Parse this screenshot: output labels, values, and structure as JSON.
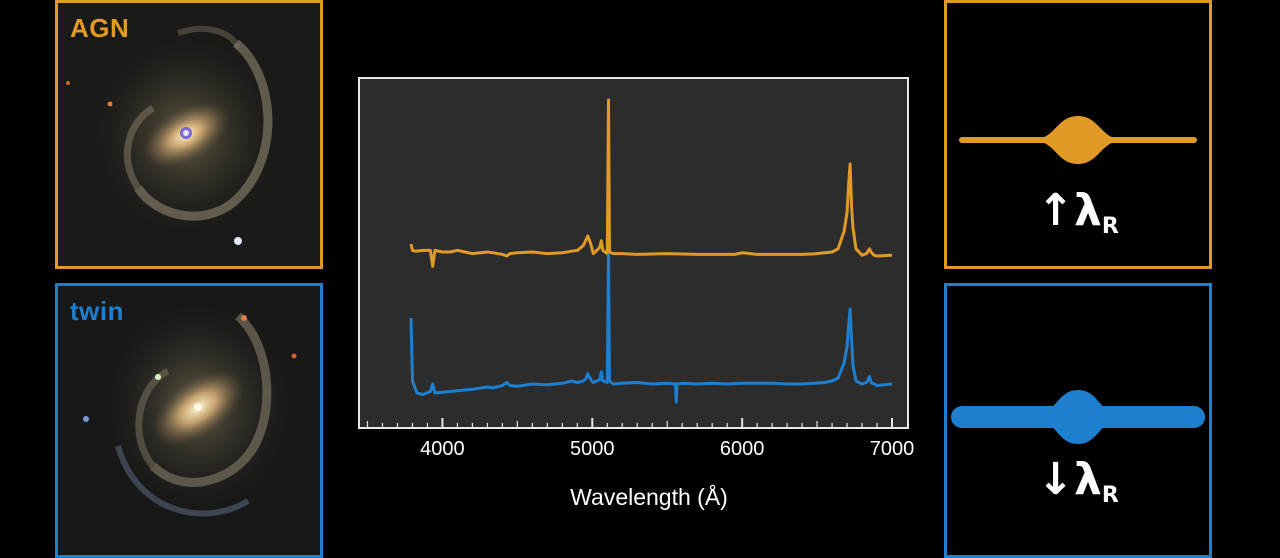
{
  "colors": {
    "agn": "#e29a26",
    "twin": "#1e7fcf",
    "chart_bg": "#2c2c2c"
  },
  "galaxies": [
    {
      "label": "AGN",
      "color": "#e29a26"
    },
    {
      "label": "twin",
      "color": "#1e7fcf"
    }
  ],
  "profiles": [
    {
      "arrow": "↑",
      "symbol": "λ",
      "subscript": "R",
      "color": "#e29a26",
      "profile": "thin"
    },
    {
      "arrow": "↓",
      "symbol": "λ",
      "subscript": "R",
      "color": "#1e7fcf",
      "profile": "thick"
    }
  ],
  "chart_data": {
    "type": "line",
    "title": "",
    "xlabel": "Wavelength (Å)",
    "ylabel": "",
    "xlim": [
      3450,
      7100
    ],
    "ylim": [
      0,
      1
    ],
    "xticks": [
      4000,
      5000,
      6000,
      7000
    ],
    "tick_labels": [
      "4000",
      "5000",
      "6000",
      "7000"
    ],
    "grid": false,
    "series": [
      {
        "color": "#e29a26",
        "x": [
          3790,
          3800,
          3820,
          3870,
          3920,
          3935,
          3950,
          4000,
          4050,
          4101,
          4150,
          4200,
          4300,
          4340,
          4400,
          4430,
          4450,
          4500,
          4600,
          4700,
          4800,
          4861,
          4900,
          4940,
          4960,
          4970,
          4990,
          5007,
          5030,
          5050,
          5060,
          5070,
          5100,
          5108,
          5115,
          5140,
          5200,
          5300,
          5500,
          5700,
          5800,
          5876,
          5950,
          6000,
          6100,
          6200,
          6300,
          6400,
          6480,
          6550,
          6600,
          6640,
          6680,
          6700,
          6710,
          6720,
          6730,
          6740,
          6760,
          6800,
          6830,
          6850,
          6860,
          6880,
          6900,
          7000
        ],
        "y": [
          0.9,
          0.94,
          0.945,
          0.94,
          0.94,
          1.04,
          0.94,
          0.95,
          0.95,
          0.94,
          0.95,
          0.96,
          0.95,
          0.955,
          0.965,
          0.975,
          0.96,
          0.955,
          0.95,
          0.96,
          0.955,
          0.945,
          0.94,
          0.91,
          0.87,
          0.85,
          0.9,
          0.96,
          0.94,
          0.92,
          0.88,
          0.94,
          0.96,
          0.0,
          0.95,
          0.96,
          0.96,
          0.965,
          0.96,
          0.965,
          0.965,
          0.965,
          0.965,
          0.955,
          0.965,
          0.965,
          0.965,
          0.965,
          0.962,
          0.955,
          0.95,
          0.93,
          0.82,
          0.7,
          0.53,
          0.4,
          0.67,
          0.8,
          0.93,
          0.97,
          0.96,
          0.93,
          0.95,
          0.97,
          0.975,
          0.97
        ]
      },
      {
        "color": "#1e7fcf",
        "x": [
          3790,
          3800,
          3830,
          3870,
          3920,
          3935,
          3950,
          4000,
          4050,
          4101,
          4150,
          4200,
          4300,
          4340,
          4400,
          4430,
          4450,
          4500,
          4600,
          4700,
          4800,
          4861,
          4900,
          4940,
          4960,
          4970,
          4990,
          5007,
          5030,
          5050,
          5060,
          5070,
          5100,
          5108,
          5115,
          5140,
          5200,
          5300,
          5400,
          5500,
          5555,
          5560,
          5565,
          5600,
          5700,
          5800,
          5900,
          6000,
          6100,
          6200,
          6300,
          6400,
          6480,
          6550,
          6600,
          6640,
          6680,
          6700,
          6710,
          6720,
          6730,
          6740,
          6760,
          6800,
          6830,
          6850,
          6860,
          6880,
          6900,
          7000
        ],
        "y": [
          0.42,
          0.84,
          0.92,
          0.93,
          0.91,
          0.86,
          0.92,
          0.915,
          0.91,
          0.905,
          0.9,
          0.895,
          0.88,
          0.885,
          0.87,
          0.85,
          0.87,
          0.875,
          0.86,
          0.865,
          0.855,
          0.84,
          0.85,
          0.84,
          0.82,
          0.79,
          0.83,
          0.85,
          0.84,
          0.83,
          0.78,
          0.84,
          0.85,
          0.0,
          0.84,
          0.86,
          0.855,
          0.85,
          0.86,
          0.855,
          0.86,
          0.98,
          0.86,
          0.855,
          0.86,
          0.855,
          0.86,
          0.855,
          0.855,
          0.855,
          0.86,
          0.86,
          0.855,
          0.85,
          0.84,
          0.82,
          0.72,
          0.61,
          0.47,
          0.36,
          0.57,
          0.74,
          0.84,
          0.86,
          0.85,
          0.81,
          0.85,
          0.86,
          0.87,
          0.86
        ]
      }
    ]
  }
}
